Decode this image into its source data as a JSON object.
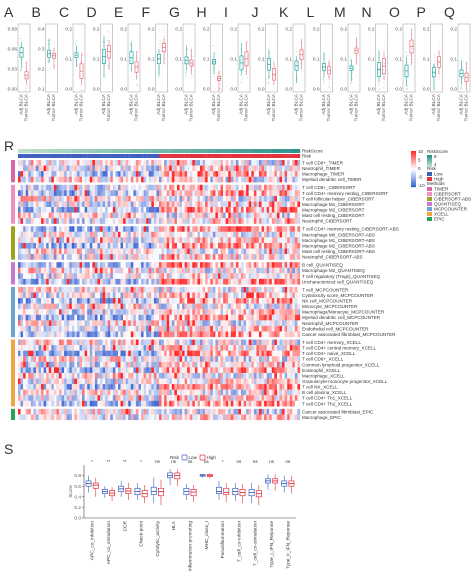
{
  "panel_letters": [
    "A",
    "B",
    "C",
    "D",
    "E",
    "F",
    "G",
    "H",
    "I",
    "J",
    "K",
    "L",
    "M",
    "N",
    "O",
    "P",
    "Q"
  ],
  "panel_r_letter": "R",
  "panel_s_letter": "S",
  "top_panels": {
    "x_labels": [
      "Adj BLCA",
      "Tumor BLCA"
    ],
    "y_ticks": [
      [
        "0.00",
        "0.03",
        "0.06",
        "0.09"
      ],
      [
        "0.1",
        "0.2",
        "0.3",
        "0.4"
      ],
      [
        "0.0",
        "0.1",
        "0.2"
      ],
      [
        "0.0",
        "0.1",
        "0.2"
      ],
      [
        "0.0",
        "0.1",
        "0.2"
      ],
      [
        "0.0",
        "0.1",
        "0.2"
      ],
      [
        "0.0",
        "0.1",
        "0.2"
      ],
      [
        "0.0",
        "0.1",
        "0.2"
      ],
      [
        "0.0",
        "0.1",
        "0.2"
      ],
      [
        "0.0",
        "0.1",
        "0.2"
      ],
      [
        "0.0",
        "0.1",
        "0.2"
      ],
      [
        "0.0",
        "0.1",
        "0.2"
      ],
      [
        "0.0",
        "0.1",
        "0.2"
      ],
      [
        "0.0",
        "0.1",
        "0.2"
      ],
      [
        "0.0",
        "0.1",
        "0.2"
      ],
      [
        "0.0",
        "0.1",
        "0.2"
      ],
      [
        "0.0",
        "0.1",
        "0.2"
      ]
    ]
  },
  "heatmap": {
    "top_track_labels": [
      "RiskScore",
      "Risk"
    ],
    "row_labels": [
      "T cell CD8+_TIMER",
      "Neutrophil_TIMER",
      "Macrophage_TIMER",
      "Myeloid dendritic cell_TIMER",
      "T cell CD8+_CIBERSORT",
      "T cell CD4+ memory resting_CIBERSORT",
      "T cell follicular helper_CIBERSORT",
      "Macrophage M1_CIBERSORT",
      "Macrophage M2_CIBERSORT",
      "Mast cell resting_CIBERSORT",
      "Neutrophil_CIBERSORT",
      "T cell CD4+ memory resting_CIBERSORT-ABS",
      "Macrophage M0_CIBERSORT-ABS",
      "Macrophage M1_CIBERSORT-ABS",
      "Macrophage M2_CIBERSORT-ABS",
      "Mast cell resting_CIBERSORT-ABS",
      "Neutrophil_CIBERSORT-ABS",
      "B cell_QUANTISEQ",
      "Macrophage M2_QUANTISEQ",
      "T cell regulatory (Tregs)_QUANTISEQ",
      "Uncharacterized cell_QUANTISEQ",
      "T cell_MCPCOUNTER",
      "Cytotoxicity score_MCPCOUNTER",
      "NK cell_MCPCOUNTER",
      "Monocyte_MCPCOUNTER",
      "Macrophage/Monocyte_MCPCOUNTER",
      "Myeloid dendritic cell_MCPCOUNTER",
      "Neutrophil_MCPCOUNTER",
      "Endothelial cell_MCPCOUNTER",
      "Cancer associated fibroblast_MCPCOUNTER",
      "T cell CD4+ memory_XCELL",
      "T cell CD4+ central memory_XCELL",
      "T cell CD4+ naive_XCELL",
      "T cell CD8+_XCELL",
      "Common lymphoid progenitor_XCELL",
      "Eosinophil_XCELL",
      "Macrophage_XCELL",
      "Granulocyte-monocyte progenitor_XCELL",
      "T cell NK_XCELL",
      "B cell plasma_XCELL",
      "T cell CD4+ Th1_XCELL",
      "T cell CD4+ Th2_XCELL",
      "Cancer associated fibroblast_EPIC",
      "Macrophage_EPIC"
    ],
    "method_colors": [
      "#d966a8",
      "#f08fbf",
      "#9aa51c",
      "#c878d4",
      "#6fa3d8",
      "#f0a640",
      "#27a35a"
    ],
    "method_group_sizes": [
      4,
      7,
      6,
      4,
      9,
      12,
      2
    ],
    "n_samples": 110,
    "risk_colors": {
      "low": "#3f5fc0",
      "high": "#e2323c"
    },
    "color_scale": {
      "high": "#d7191c",
      "mid": "#ffffff",
      "low": "#2c5ac7"
    },
    "colorbar_ticks": [
      "10",
      "5",
      "0",
      "-5",
      "-10"
    ],
    "legend": {
      "riskscore_title": "RiskScore",
      "riskscore_ticks": [
        "8",
        "4"
      ],
      "risk_title": "Risk",
      "risk_items": [
        "Low",
        "High"
      ],
      "methods_title": "Methods",
      "methods_items": [
        "TIMER",
        "CIBERSORT",
        "CIBERSORT-ABS",
        "QUANTISEQ",
        "MCPCOUNTER",
        "XCELL",
        "EPIC"
      ]
    }
  },
  "chart_data": {
    "type": "box",
    "title": "",
    "ylabel": "Score",
    "legend_title": "Risk",
    "legend_items": [
      "Low",
      "High"
    ],
    "legend_colors": [
      "#3f5fc0",
      "#e2323c"
    ],
    "ylim": [
      0.0,
      1.0
    ],
    "y_ticks": [
      "0.0",
      "0.2",
      "0.4",
      "0.6",
      "0.8"
    ],
    "categories": [
      "APC_co_inhibition",
      "APC_co_stimulation",
      "CCR",
      "Check-point",
      "Cytolytic_activity",
      "HLA",
      "Inflammation-promoting",
      "MHC_class_I",
      "Parainflammation",
      "T_cell_co-inhibition",
      "T_cell_co-stimulation",
      "Type_I_IFN_Reponse",
      "Type_II_IFN_Reponse"
    ],
    "significance": [
      "*",
      "**",
      "**",
      "*",
      "ns",
      "ns",
      "ns",
      "ns",
      "*",
      "ns",
      "ns",
      "ns",
      "ns"
    ],
    "series": [
      {
        "name": "Low",
        "q1": [
          0.6,
          0.46,
          0.5,
          0.44,
          0.44,
          0.76,
          0.44,
          0.79,
          0.46,
          0.44,
          0.42,
          0.66,
          0.6
        ],
        "median": [
          0.65,
          0.5,
          0.55,
          0.5,
          0.5,
          0.8,
          0.5,
          0.8,
          0.5,
          0.5,
          0.48,
          0.7,
          0.65
        ],
        "q3": [
          0.7,
          0.54,
          0.6,
          0.56,
          0.58,
          0.85,
          0.56,
          0.82,
          0.58,
          0.56,
          0.54,
          0.74,
          0.7
        ],
        "whisker_low": [
          0.48,
          0.38,
          0.4,
          0.34,
          0.28,
          0.62,
          0.34,
          0.76,
          0.34,
          0.32,
          0.28,
          0.54,
          0.48
        ],
        "whisker_high": [
          0.8,
          0.6,
          0.7,
          0.66,
          0.76,
          0.92,
          0.64,
          0.84,
          0.7,
          0.66,
          0.66,
          0.82,
          0.8
        ]
      },
      {
        "name": "High",
        "q1": [
          0.56,
          0.42,
          0.46,
          0.4,
          0.42,
          0.74,
          0.42,
          0.78,
          0.44,
          0.42,
          0.4,
          0.66,
          0.6
        ],
        "median": [
          0.62,
          0.47,
          0.51,
          0.46,
          0.5,
          0.8,
          0.49,
          0.8,
          0.48,
          0.48,
          0.46,
          0.7,
          0.65
        ],
        "q3": [
          0.66,
          0.52,
          0.56,
          0.52,
          0.56,
          0.85,
          0.54,
          0.82,
          0.56,
          0.54,
          0.52,
          0.74,
          0.7
        ],
        "whisker_low": [
          0.4,
          0.32,
          0.34,
          0.28,
          0.24,
          0.6,
          0.3,
          0.75,
          0.3,
          0.28,
          0.24,
          0.52,
          0.46
        ],
        "whisker_high": [
          0.76,
          0.58,
          0.66,
          0.62,
          0.72,
          0.92,
          0.62,
          0.84,
          0.66,
          0.64,
          0.62,
          0.82,
          0.8
        ]
      }
    ]
  }
}
